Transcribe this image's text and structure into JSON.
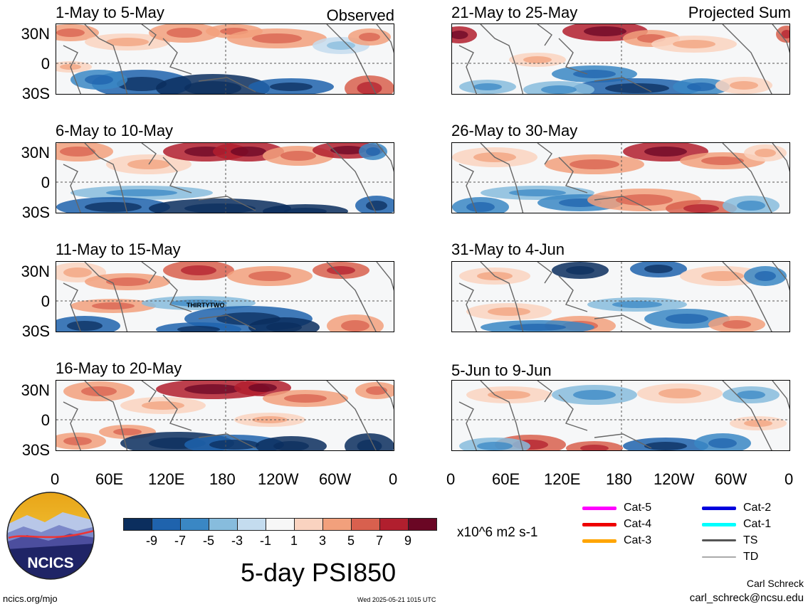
{
  "panels": [
    {
      "title": "1-May to 5-May",
      "tag": "Observed"
    },
    {
      "title": "6-May to 10-May",
      "tag": ""
    },
    {
      "title": "11-May to 15-May",
      "tag": "",
      "annotation": "THIRTYTWO"
    },
    {
      "title": "16-May to 20-May",
      "tag": ""
    },
    {
      "title": "21-May to 25-May",
      "tag": "Projected Sum"
    },
    {
      "title": "26-May to 30-May",
      "tag": ""
    },
    {
      "title": "31-May to 4-Jun",
      "tag": ""
    },
    {
      "title": "5-Jun to 9-Jun",
      "tag": ""
    }
  ],
  "lat_labels": [
    "30N",
    "0",
    "30S"
  ],
  "lon_labels": [
    "0",
    "60E",
    "120E",
    "180",
    "120W",
    "60W",
    "0"
  ],
  "colorbar": {
    "labels": [
      "-9",
      "-7",
      "-5",
      "-3",
      "-1",
      "1",
      "3",
      "5",
      "7",
      "9"
    ],
    "units": "x10^6 m2 s-1",
    "colors": [
      "#0b2e5e",
      "#1f63ad",
      "#3a87c4",
      "#87bcdd",
      "#c4dcef",
      "#f7f7f7",
      "#fad3c0",
      "#f2a07c",
      "#d8604e",
      "#b11f2e",
      "#6a0624"
    ]
  },
  "legend": [
    {
      "label": "Cat-5",
      "color": "#ff00ff"
    },
    {
      "label": "Cat-4",
      "color": "#ee0000"
    },
    {
      "label": "Cat-3",
      "color": "#ffa500"
    },
    {
      "label": "Cat-2",
      "color": "#0000dd"
    },
    {
      "label": "Cat-1",
      "color": "#00ffff"
    },
    {
      "label": "TS",
      "color": "#555555"
    },
    {
      "label": "TD",
      "color": "#aaaaaa"
    }
  ],
  "logo": {
    "text": "NCICS"
  },
  "main_title": "5-day PSI850",
  "footer": {
    "url": "ncics.org/mjo",
    "timestamp": "Wed 2025-05-21 1015 UTC",
    "author": "Carl Schreck",
    "email": "carl_schreck@ncsu.edu"
  }
}
